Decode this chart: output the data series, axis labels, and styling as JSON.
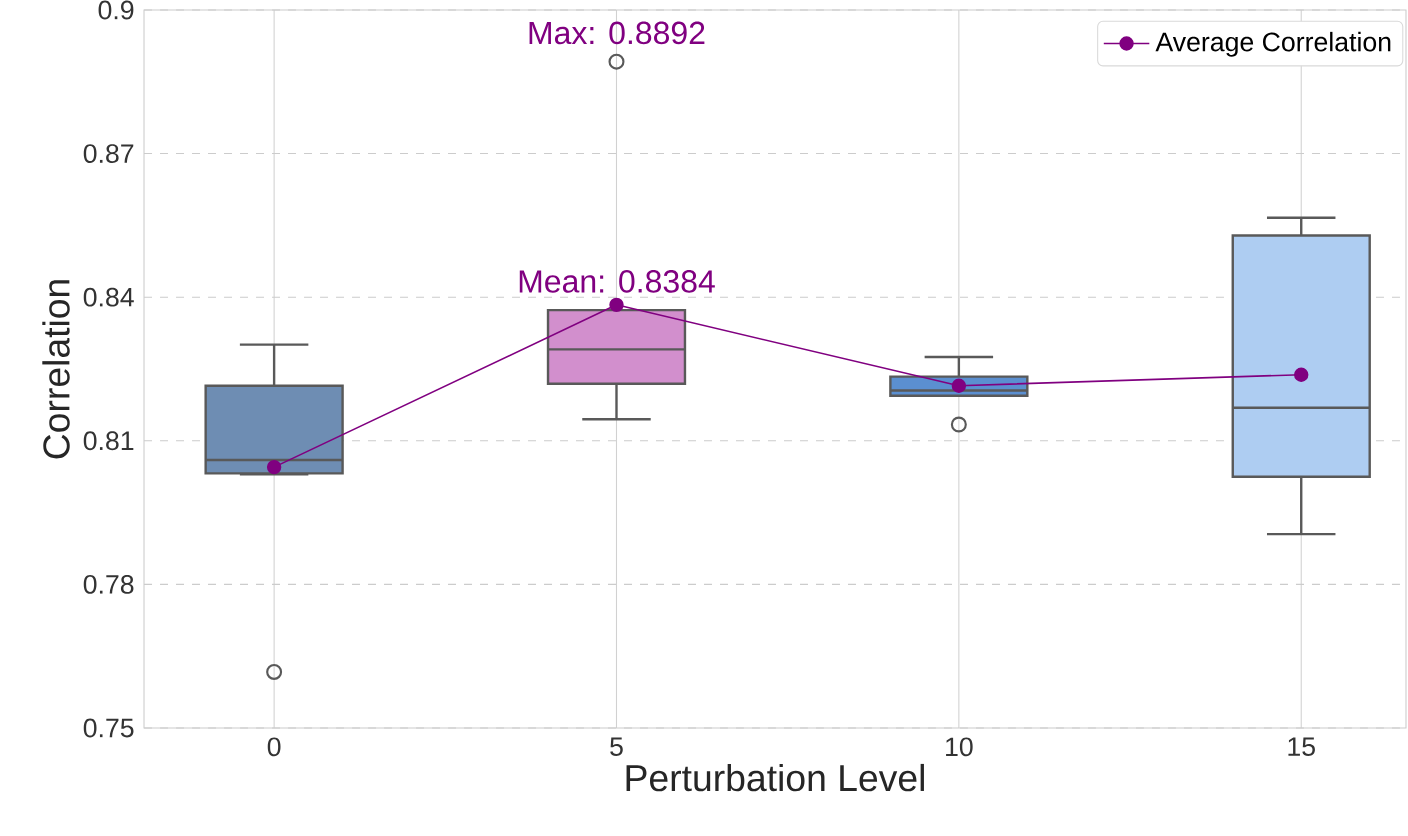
{
  "chart_data": {
    "type": "box",
    "xlabel": "Perturbation Level",
    "ylabel": "Correlation",
    "categories": [
      "0",
      "5",
      "10",
      "15"
    ],
    "colors": [
      "#6e8db3",
      "#d28fcd",
      "#5b8fd0",
      "#aecdf2"
    ],
    "boxes": [
      {
        "low": 0.803,
        "q1": 0.8032,
        "median": 0.806,
        "q3": 0.8215,
        "high": 0.8301,
        "outliers": [
          0.7617
        ]
      },
      {
        "low": 0.8145,
        "q1": 0.8219,
        "median": 0.8291,
        "q3": 0.8373,
        "high": 0.8373,
        "outliers": [
          0.8892
        ]
      },
      {
        "low": 0.8194,
        "q1": 0.8194,
        "median": 0.8205,
        "q3": 0.8234,
        "high": 0.8275,
        "outliers": [
          0.8134
        ]
      },
      {
        "low": 0.7905,
        "q1": 0.8025,
        "median": 0.8169,
        "q3": 0.8529,
        "high": 0.8566
      }
    ],
    "series": [
      {
        "type": "line",
        "name": "Average Correlation",
        "color": "#800080",
        "values": [
          0.8045,
          0.8384,
          0.8215,
          0.8238
        ],
        "marker": "circle"
      }
    ],
    "ylim": [
      0.75,
      0.9
    ],
    "yticks": [
      0.75,
      0.78,
      0.81,
      0.84,
      0.87,
      0.9
    ],
    "grid": true,
    "legend": "top right",
    "annotations": [
      "Max: 0.8892",
      {
        "text": "Mean: 0.8384",
        "x": "5",
        "y": 0.8384
      }
    ]
  }
}
